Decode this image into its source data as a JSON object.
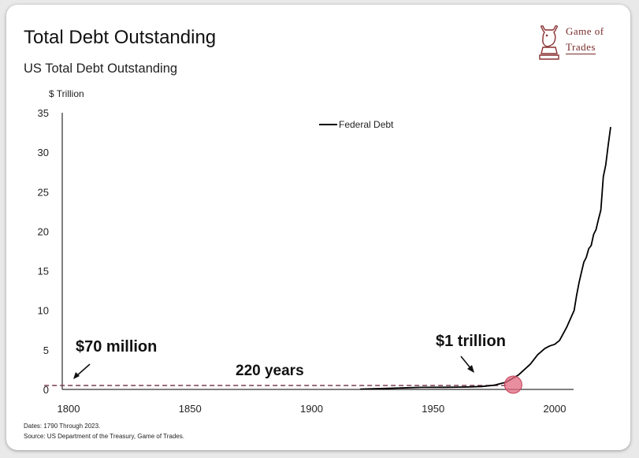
{
  "title": "Total Debt Outstanding",
  "subtitle": "US Total Debt Outstanding",
  "logo": {
    "line1": "Game of",
    "line2": "Trades",
    "icon": "bull-chess-knight-icon"
  },
  "footnotes": {
    "dates": "Dates: 1790 Through 2023.",
    "source": "Source: US Department of the Treasury, Game of Trades."
  },
  "annotations": {
    "start_value": "$70 million",
    "span": "220 years",
    "end_value": "$1 trillion"
  },
  "colors": {
    "line": "#000000",
    "dashed": "#7a3b52",
    "highlight": "#e0687e"
  },
  "chart_data": {
    "type": "line",
    "ylabel": "$ Trillion",
    "xlim": [
      1790,
      2023
    ],
    "ylim": [
      0,
      35
    ],
    "xticks": [
      "1800",
      "1850",
      "1900",
      "1950",
      "2000"
    ],
    "yticks": [
      "0",
      "5",
      "10",
      "15",
      "20",
      "25",
      "30",
      "35"
    ],
    "legend": {
      "position": "top-center"
    },
    "series": [
      {
        "name": "Federal Debt",
        "x": [
          1920,
          1945,
          1955,
          1960,
          1965,
          1970,
          1975,
          1980,
          1985,
          1990,
          1993,
          1996,
          1998,
          2000,
          2002,
          2005,
          2008,
          2009,
          2010,
          2011,
          2012,
          2013,
          2014,
          2015,
          2016,
          2017,
          2018,
          2019,
          2020,
          2021,
          2022,
          2023
        ],
        "y": [
          0.03,
          0.26,
          0.27,
          0.29,
          0.32,
          0.37,
          0.53,
          0.91,
          1.8,
          3.2,
          4.4,
          5.2,
          5.5,
          5.7,
          6.2,
          7.9,
          10.0,
          11.9,
          13.5,
          14.8,
          16.1,
          16.7,
          17.8,
          18.2,
          19.6,
          20.2,
          21.5,
          22.7,
          26.9,
          28.4,
          30.9,
          33.2
        ]
      }
    ],
    "reference_line": {
      "style": "dashed",
      "from": 1790,
      "to": 1981,
      "y": 0.07
    },
    "highlight_point": {
      "x": 1981,
      "y": 0.9
    }
  }
}
